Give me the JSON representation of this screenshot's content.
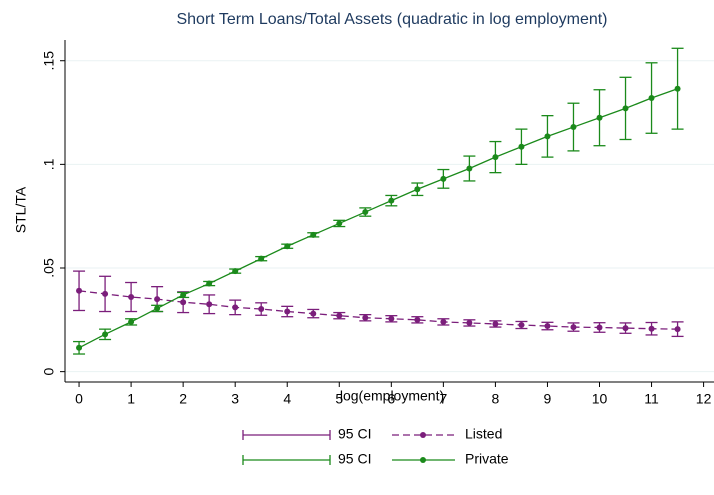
{
  "chart_data": {
    "type": "line",
    "title": "Short Term Loans/Total Assets (quadratic in log employment)",
    "xlabel": "log(employment)",
    "ylabel": "STL/TA",
    "x": [
      0,
      0.5,
      1,
      1.5,
      2,
      2.5,
      3,
      3.5,
      4,
      4.5,
      5,
      5.5,
      6,
      6.5,
      7,
      7.5,
      8,
      8.5,
      9,
      9.5,
      10,
      10.5,
      11,
      11.5
    ],
    "series": [
      {
        "name": "Listed",
        "ci_name": "95 CI",
        "color": "#7b1e7b",
        "dash": true,
        "values": [
          0.039,
          0.0375,
          0.036,
          0.035,
          0.0335,
          0.0325,
          0.031,
          0.0302,
          0.029,
          0.028,
          0.027,
          0.026,
          0.0255,
          0.025,
          0.024,
          0.0235,
          0.023,
          0.0225,
          0.022,
          0.0215,
          0.0213,
          0.021,
          0.0207,
          0.0205
        ],
        "errors": [
          0.0095,
          0.0085,
          0.007,
          0.006,
          0.005,
          0.0045,
          0.0035,
          0.003,
          0.0025,
          0.002,
          0.0015,
          0.0015,
          0.0015,
          0.0015,
          0.0015,
          0.0015,
          0.0015,
          0.0017,
          0.0018,
          0.002,
          0.0023,
          0.0025,
          0.003,
          0.0035
        ]
      },
      {
        "name": "Private",
        "ci_name": "95 CI",
        "color": "#1b8a1b",
        "dash": false,
        "values": [
          0.0115,
          0.018,
          0.024,
          0.0305,
          0.037,
          0.0425,
          0.0485,
          0.0545,
          0.0605,
          0.066,
          0.0715,
          0.077,
          0.0825,
          0.088,
          0.093,
          0.098,
          0.1035,
          0.1085,
          0.1135,
          0.118,
          0.1225,
          0.127,
          0.132,
          0.1365
        ],
        "errors": [
          0.003,
          0.0025,
          0.0015,
          0.0015,
          0.0012,
          0.001,
          0.001,
          0.001,
          0.001,
          0.001,
          0.0015,
          0.002,
          0.0025,
          0.003,
          0.0045,
          0.006,
          0.0075,
          0.0085,
          0.01,
          0.0115,
          0.0135,
          0.015,
          0.017,
          0.0195
        ]
      }
    ],
    "xlim": [
      -0.27,
      12.2
    ],
    "ylim": [
      -0.005,
      0.16
    ],
    "xticks": [
      0,
      1,
      2,
      3,
      4,
      5,
      6,
      7,
      8,
      9,
      10,
      11,
      12
    ],
    "yticks": [
      0,
      {
        "value": 0.05,
        "label": ".05"
      },
      {
        "value": 0.1,
        "label": ".1"
      },
      {
        "value": 0.15,
        "label": ".15"
      }
    ],
    "grid": true,
    "legend": "bottom"
  }
}
